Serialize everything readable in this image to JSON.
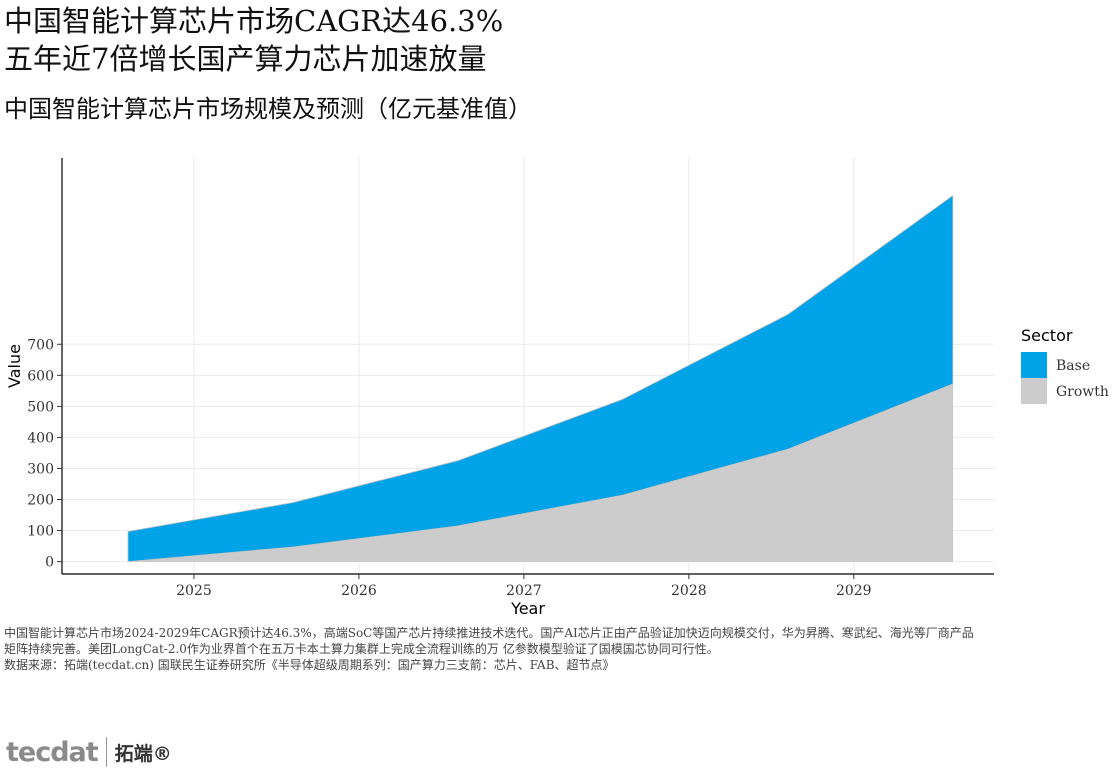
{
  "title_line1": "中国智能计算芯片市场CAGR达46.3%",
  "title_line2": "五年近7倍增长国产算力芯片加速放量",
  "subtitle": "中国智能计算芯片市场规模及预测（亿元基准值）",
  "note_line1": "中国智能计算芯片市场2024-2029年CAGR预计达46.3%，高端SoC等国产芯片持续推进技术迭代。国产AI芯片正由产品验证加快迈向规模交付，华为昇腾、寒武纪、海光等厂商产品",
  "note_line2": "矩阵持续完善。美团LongCat-2.0作为业界首个在五万卡本土算力集群上完成全流程训练的万 亿参数模型验证了国模国芯协同可行性。",
  "source": "数据来源：拓端(tecdat.cn) 国联民生证券研究所《半导体超级周期系列：国产算力三支箭：芯片、FAB、超节点》",
  "logo": {
    "mark": "tecdat",
    "name": "拓端®"
  },
  "chart_data": {
    "type": "area",
    "stacked": true,
    "xlabel": "Year",
    "ylabel": "Value",
    "x": [
      2024.6,
      2025.6,
      2026.6,
      2027.6,
      2028.6,
      2029.6
    ],
    "x_ticks": [
      2025,
      2026,
      2027,
      2028,
      2029
    ],
    "y_ticks": [
      0,
      100,
      200,
      300,
      400,
      500,
      600,
      700
    ],
    "ylim": [
      -40,
      1300
    ],
    "xlim": [
      2024.2,
      2029.85
    ],
    "legend_title": "Sector",
    "legend_position": "right",
    "grid": true,
    "series": [
      {
        "name": "Growth",
        "color": "#cccccc",
        "values": [
          0,
          47,
          115,
          214,
          362,
          572
        ]
      },
      {
        "name": "Base",
        "color": "#00a2e8",
        "values": [
          97,
          143,
          210,
          309,
          434,
          607
        ]
      }
    ],
    "legend_order": [
      "Base",
      "Growth"
    ]
  }
}
